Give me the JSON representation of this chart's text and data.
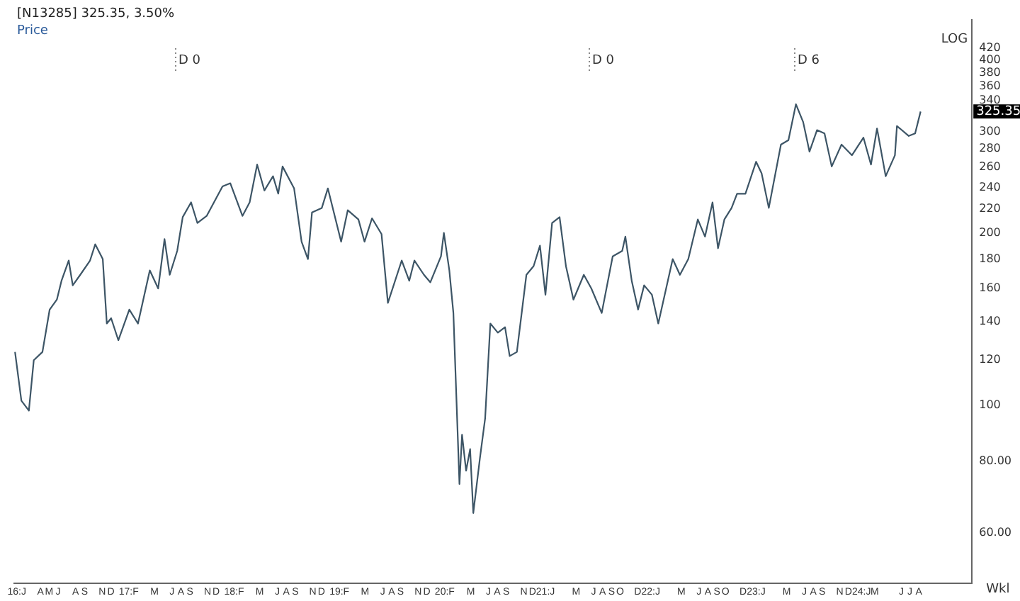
{
  "chart_data": {
    "type": "line",
    "title": "[N13285] 325.35, 3.50%",
    "subtitle": "Price",
    "log": "y",
    "marker": "none",
    "xlim": [
      "2016-01-01",
      "2025-02-01"
    ],
    "ylim": [
      49,
      470
    ],
    "yticks": [
      {
        "value": 60,
        "label": "60.00"
      },
      {
        "value": 80,
        "label": "80.00"
      },
      100,
      120,
      140,
      160,
      180,
      200,
      220,
      240,
      260,
      280,
      300,
      340,
      360,
      380,
      400,
      420
    ],
    "xticks": [
      {
        "value": "2016-01-10",
        "label": "16:J"
      },
      {
        "value": "2016-04-01",
        "label": "A"
      },
      {
        "value": "2016-05-01",
        "label": "M"
      },
      {
        "value": "2016-06-01",
        "label": "J"
      },
      {
        "value": "2016-08-01",
        "label": "A"
      },
      {
        "value": "2016-09-01",
        "label": "S"
      },
      {
        "value": "2016-11-01",
        "label": "N"
      },
      {
        "value": "2016-12-01",
        "label": "D"
      },
      {
        "value": "2017-02-01",
        "label": "17:F"
      },
      {
        "value": "2017-05-01",
        "label": "M"
      },
      {
        "value": "2017-07-01",
        "label": "J"
      },
      {
        "value": "2017-08-01",
        "label": "A"
      },
      {
        "value": "2017-09-01",
        "label": "S"
      },
      {
        "value": "2017-11-01",
        "label": "N"
      },
      {
        "value": "2017-12-01",
        "label": "D"
      },
      {
        "value": "2018-02-01",
        "label": "18:F"
      },
      {
        "value": "2018-05-01",
        "label": "M"
      },
      {
        "value": "2018-07-01",
        "label": "J"
      },
      {
        "value": "2018-08-01",
        "label": "A"
      },
      {
        "value": "2018-09-01",
        "label": "S"
      },
      {
        "value": "2018-11-01",
        "label": "N"
      },
      {
        "value": "2018-12-01",
        "label": "D"
      },
      {
        "value": "2019-02-01",
        "label": "19:F"
      },
      {
        "value": "2019-05-01",
        "label": "M"
      },
      {
        "value": "2019-07-01",
        "label": "J"
      },
      {
        "value": "2019-08-01",
        "label": "A"
      },
      {
        "value": "2019-09-01",
        "label": "S"
      },
      {
        "value": "2019-11-01",
        "label": "N"
      },
      {
        "value": "2019-12-01",
        "label": "D"
      },
      {
        "value": "2020-02-01",
        "label": "20:F"
      },
      {
        "value": "2020-05-01",
        "label": "M"
      },
      {
        "value": "2020-07-01",
        "label": "J"
      },
      {
        "value": "2020-08-01",
        "label": "A"
      },
      {
        "value": "2020-09-01",
        "label": "S"
      },
      {
        "value": "2020-11-01",
        "label": "N"
      },
      {
        "value": "2020-12-01",
        "label": "D"
      },
      {
        "value": "2021-01-15",
        "label": "21:J"
      },
      {
        "value": "2021-05-01",
        "label": "M"
      },
      {
        "value": "2021-07-01",
        "label": "J"
      },
      {
        "value": "2021-08-01",
        "label": "A"
      },
      {
        "value": "2021-09-01",
        "label": "S"
      },
      {
        "value": "2021-10-01",
        "label": "O"
      },
      {
        "value": "2021-12-01",
        "label": "D"
      },
      {
        "value": "2022-01-15",
        "label": "22:J"
      },
      {
        "value": "2022-05-01",
        "label": "M"
      },
      {
        "value": "2022-07-01",
        "label": "J"
      },
      {
        "value": "2022-08-01",
        "label": "A"
      },
      {
        "value": "2022-09-01",
        "label": "S"
      },
      {
        "value": "2022-10-01",
        "label": "O"
      },
      {
        "value": "2022-12-01",
        "label": "D"
      },
      {
        "value": "2023-01-15",
        "label": "23:J"
      },
      {
        "value": "2023-05-01",
        "label": "M"
      },
      {
        "value": "2023-07-01",
        "label": "J"
      },
      {
        "value": "2023-08-01",
        "label": "A"
      },
      {
        "value": "2023-09-01",
        "label": "S"
      },
      {
        "value": "2023-11-01",
        "label": "N"
      },
      {
        "value": "2023-12-01",
        "label": "D"
      },
      {
        "value": "2024-01-15",
        "label": "24:J"
      },
      {
        "value": "2024-03-01",
        "label": "M"
      },
      {
        "value": "2024-06-01",
        "label": "J"
      },
      {
        "value": "2024-07-01",
        "label": "J"
      },
      {
        "value": "2024-08-01",
        "label": "A"
      }
    ],
    "series": [
      {
        "color": "#3d5566",
        "x": [
          "2016-01-04",
          "2016-01-26",
          "2016-02-21",
          "2016-03-09",
          "2016-04-08",
          "2016-05-03",
          "2016-05-28",
          "2016-06-13",
          "2016-07-08",
          "2016-07-22",
          "2016-08-17",
          "2016-09-20",
          "2016-10-08",
          "2016-11-03",
          "2016-11-17",
          "2016-12-02",
          "2016-12-27",
          "2017-02-03",
          "2017-03-05",
          "2017-04-15",
          "2017-05-14",
          "2017-06-05",
          "2017-06-23",
          "2017-07-19",
          "2017-08-07",
          "2017-09-05",
          "2017-09-27",
          "2017-10-29",
          "2017-12-23",
          "2018-01-19",
          "2018-03-02",
          "2018-03-27",
          "2018-04-22",
          "2018-05-17",
          "2018-06-16",
          "2018-07-04",
          "2018-07-19",
          "2018-08-28",
          "2018-09-23",
          "2018-10-15",
          "2018-10-29",
          "2018-12-02",
          "2018-12-23",
          "2019-02-07",
          "2019-03-02",
          "2019-04-08",
          "2019-04-29",
          "2019-05-25",
          "2019-06-27",
          "2019-07-19",
          "2019-09-05",
          "2019-10-01",
          "2019-10-19",
          "2019-11-21",
          "2019-12-13",
          "2020-01-19",
          "2020-01-29",
          "2020-02-17",
          "2020-03-02",
          "2020-03-23",
          "2020-04-01",
          "2020-04-15",
          "2020-04-29",
          "2020-05-10",
          "2020-06-02",
          "2020-06-20",
          "2020-07-08",
          "2020-08-03",
          "2020-08-28",
          "2020-09-13",
          "2020-10-08",
          "2020-11-10",
          "2020-12-05",
          "2020-12-27",
          "2021-01-15",
          "2021-02-07",
          "2021-03-05",
          "2021-03-27",
          "2021-04-22",
          "2021-05-28",
          "2021-06-23",
          "2021-07-29",
          "2021-09-05",
          "2021-10-08",
          "2021-10-19",
          "2021-11-10",
          "2021-12-02",
          "2021-12-23",
          "2022-01-19",
          "2022-02-10",
          "2022-04-01",
          "2022-04-26",
          "2022-05-25",
          "2022-06-27",
          "2022-07-22",
          "2022-08-17",
          "2022-09-05",
          "2022-09-27",
          "2022-10-22",
          "2022-11-10",
          "2022-12-09",
          "2023-01-15",
          "2023-02-03",
          "2023-02-28",
          "2023-03-23",
          "2023-04-11",
          "2023-05-07",
          "2023-06-02",
          "2023-06-27",
          "2023-07-19",
          "2023-08-14",
          "2023-09-09",
          "2023-10-04",
          "2023-11-07",
          "2023-12-13",
          "2024-01-22",
          "2024-02-17",
          "2024-03-09",
          "2024-04-08",
          "2024-05-10",
          "2024-05-17",
          "2024-06-27",
          "2024-07-19",
          "2024-08-07"
        ],
        "values": [
          124,
          102,
          98,
          120,
          124,
          147,
          153,
          165,
          179,
          162,
          169,
          179,
          191,
          180,
          139,
          142,
          130,
          147,
          139,
          172,
          160,
          195,
          169,
          186,
          213,
          226,
          208,
          214,
          241,
          244,
          214,
          226,
          263,
          237,
          251,
          234,
          261,
          239,
          193,
          180,
          217,
          221,
          239,
          193,
          219,
          211,
          193,
          212,
          199,
          151,
          179,
          165,
          179,
          169,
          164,
          182,
          200,
          172,
          145,
          73,
          89,
          77,
          84,
          65,
          81,
          95,
          139,
          134,
          137,
          122,
          124,
          169,
          175,
          190,
          156,
          208,
          213,
          175,
          153,
          169,
          160,
          145,
          182,
          186,
          197,
          165,
          147,
          162,
          156,
          139,
          180,
          169,
          180,
          211,
          197,
          226,
          188,
          211,
          221,
          234,
          234,
          266,
          254,
          221,
          254,
          285,
          290,
          335,
          312,
          277,
          302,
          298,
          261,
          285,
          273,
          293,
          263,
          304,
          251,
          273,
          307,
          295,
          298,
          325.35
        ]
      }
    ],
    "annotations": [
      "LOG",
      "Wkl",
      "D 0",
      "D 0",
      "D 6",
      "325.35"
    ]
  }
}
